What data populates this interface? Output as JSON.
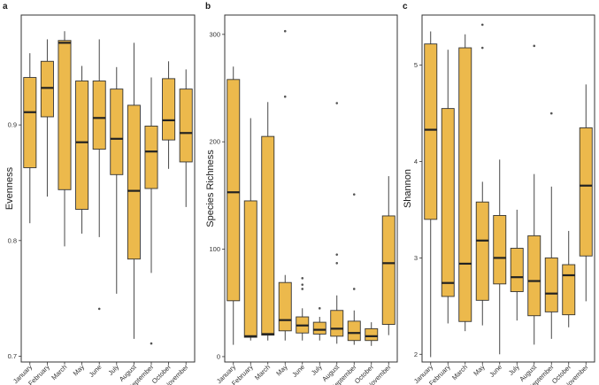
{
  "chart_data": [
    {
      "type": "boxplot",
      "panel_label": "a",
      "ylabel": "Evenness",
      "xlabel": "",
      "ylim": [
        0.695,
        0.995
      ],
      "yticks": [
        0.7,
        0.8,
        0.9
      ],
      "ytick_labels": [
        "0.7",
        "0.8",
        "0.9"
      ],
      "categories": [
        "January",
        "February",
        "March",
        "May",
        "June",
        "July",
        "August",
        "September",
        "October",
        "November"
      ],
      "boxes": [
        {
          "min": 0.815,
          "q1": 0.863,
          "median": 0.911,
          "q3": 0.941,
          "max": 0.962,
          "outliers": []
        },
        {
          "min": 0.838,
          "q1": 0.907,
          "median": 0.932,
          "q3": 0.955,
          "max": 0.974,
          "outliers": []
        },
        {
          "min": 0.795,
          "q1": 0.844,
          "median": 0.971,
          "q3": 0.973,
          "max": 0.981,
          "outliers": []
        },
        {
          "min": 0.806,
          "q1": 0.827,
          "median": 0.885,
          "q3": 0.938,
          "max": 0.951,
          "outliers": []
        },
        {
          "min": 0.803,
          "q1": 0.879,
          "median": 0.906,
          "q3": 0.938,
          "max": 0.974,
          "outliers": [
            0.741
          ]
        },
        {
          "min": 0.754,
          "q1": 0.857,
          "median": 0.888,
          "q3": 0.931,
          "max": 0.95,
          "outliers": []
        },
        {
          "min": 0.715,
          "q1": 0.784,
          "median": 0.843,
          "q3": 0.917,
          "max": 0.971,
          "outliers": []
        },
        {
          "min": 0.772,
          "q1": 0.845,
          "median": 0.877,
          "q3": 0.899,
          "max": 0.941,
          "outliers": [
            0.711
          ]
        },
        {
          "min": 0.862,
          "q1": 0.887,
          "median": 0.904,
          "q3": 0.94,
          "max": 0.955,
          "outliers": []
        },
        {
          "min": 0.829,
          "q1": 0.868,
          "median": 0.893,
          "q3": 0.931,
          "max": 0.948,
          "outliers": []
        }
      ]
    },
    {
      "type": "boxplot",
      "panel_label": "b",
      "ylabel": "Species Richness",
      "xlabel": "",
      "ylim": [
        -5,
        318
      ],
      "yticks": [
        0,
        100,
        200,
        300
      ],
      "ytick_labels": [
        "0",
        "100",
        "200",
        "300"
      ],
      "categories": [
        "January",
        "February",
        "March",
        "May",
        "June",
        "July",
        "August",
        "September",
        "October",
        "November"
      ],
      "boxes": [
        {
          "min": 11,
          "q1": 52,
          "median": 153,
          "q3": 258,
          "max": 270,
          "outliers": []
        },
        {
          "min": 15,
          "q1": 18,
          "median": 19,
          "q3": 145,
          "max": 222,
          "outliers": []
        },
        {
          "min": 15,
          "q1": 20,
          "median": 21,
          "q3": 205,
          "max": 237,
          "outliers": []
        },
        {
          "min": 15,
          "q1": 24,
          "median": 34,
          "q3": 69,
          "max": 76,
          "outliers": [
            242,
            303
          ]
        },
        {
          "min": 15,
          "q1": 22,
          "median": 29,
          "q3": 37,
          "max": 45,
          "outliers": [
            63,
            67,
            73
          ]
        },
        {
          "min": 15,
          "q1": 21,
          "median": 25,
          "q3": 32,
          "max": 37,
          "outliers": [
            45
          ]
        },
        {
          "min": 12,
          "q1": 19,
          "median": 26,
          "q3": 43,
          "max": 57,
          "outliers": [
            87,
            95,
            236
          ]
        },
        {
          "min": 11,
          "q1": 15,
          "median": 22,
          "q3": 33,
          "max": 43,
          "outliers": [
            63,
            151
          ]
        },
        {
          "min": 10,
          "q1": 15,
          "median": 19,
          "q3": 26,
          "max": 32,
          "outliers": []
        },
        {
          "min": 20,
          "q1": 30,
          "median": 87,
          "q3": 131,
          "max": 168,
          "outliers": []
        }
      ]
    },
    {
      "type": "boxplot",
      "panel_label": "c",
      "ylabel": "Shannon",
      "xlabel": "",
      "ylim": [
        1.92,
        5.52
      ],
      "yticks": [
        2,
        3,
        4,
        5
      ],
      "ytick_labels": [
        "2",
        "3",
        "4",
        "5"
      ],
      "categories": [
        "January",
        "February",
        "March",
        "May",
        "June",
        "July",
        "August",
        "September",
        "October",
        "November"
      ],
      "boxes": [
        {
          "min": 1.97,
          "q1": 3.4,
          "median": 4.33,
          "q3": 5.22,
          "max": 5.35,
          "outliers": []
        },
        {
          "min": 2.32,
          "q1": 2.6,
          "median": 2.74,
          "q3": 4.55,
          "max": 5.16,
          "outliers": []
        },
        {
          "min": 2.24,
          "q1": 2.34,
          "median": 2.94,
          "q3": 5.18,
          "max": 5.32,
          "outliers": []
        },
        {
          "min": 2.3,
          "q1": 2.56,
          "median": 3.18,
          "q3": 3.58,
          "max": 3.79,
          "outliers": [
            5.18,
            5.42
          ]
        },
        {
          "min": 2.0,
          "q1": 2.73,
          "median": 3.0,
          "q3": 3.44,
          "max": 4.02,
          "outliers": []
        },
        {
          "min": 2.35,
          "q1": 2.65,
          "median": 2.8,
          "q3": 3.1,
          "max": 3.5,
          "outliers": []
        },
        {
          "min": 2.1,
          "q1": 2.4,
          "median": 2.76,
          "q3": 3.23,
          "max": 3.87,
          "outliers": [
            5.2
          ]
        },
        {
          "min": 2.16,
          "q1": 2.44,
          "median": 2.63,
          "q3": 3.0,
          "max": 3.74,
          "outliers": [
            4.5
          ]
        },
        {
          "min": 2.28,
          "q1": 2.41,
          "median": 2.82,
          "q3": 2.93,
          "max": 3.28,
          "outliers": []
        },
        {
          "min": 2.55,
          "q1": 3.02,
          "median": 3.75,
          "q3": 4.35,
          "max": 4.8,
          "outliers": []
        }
      ]
    }
  ],
  "colors": {
    "box_fill": "#ECB94C",
    "box_stroke": "#333333",
    "outlier": "#555555",
    "panel_border": "#333333",
    "text": "#1a1a1a"
  }
}
